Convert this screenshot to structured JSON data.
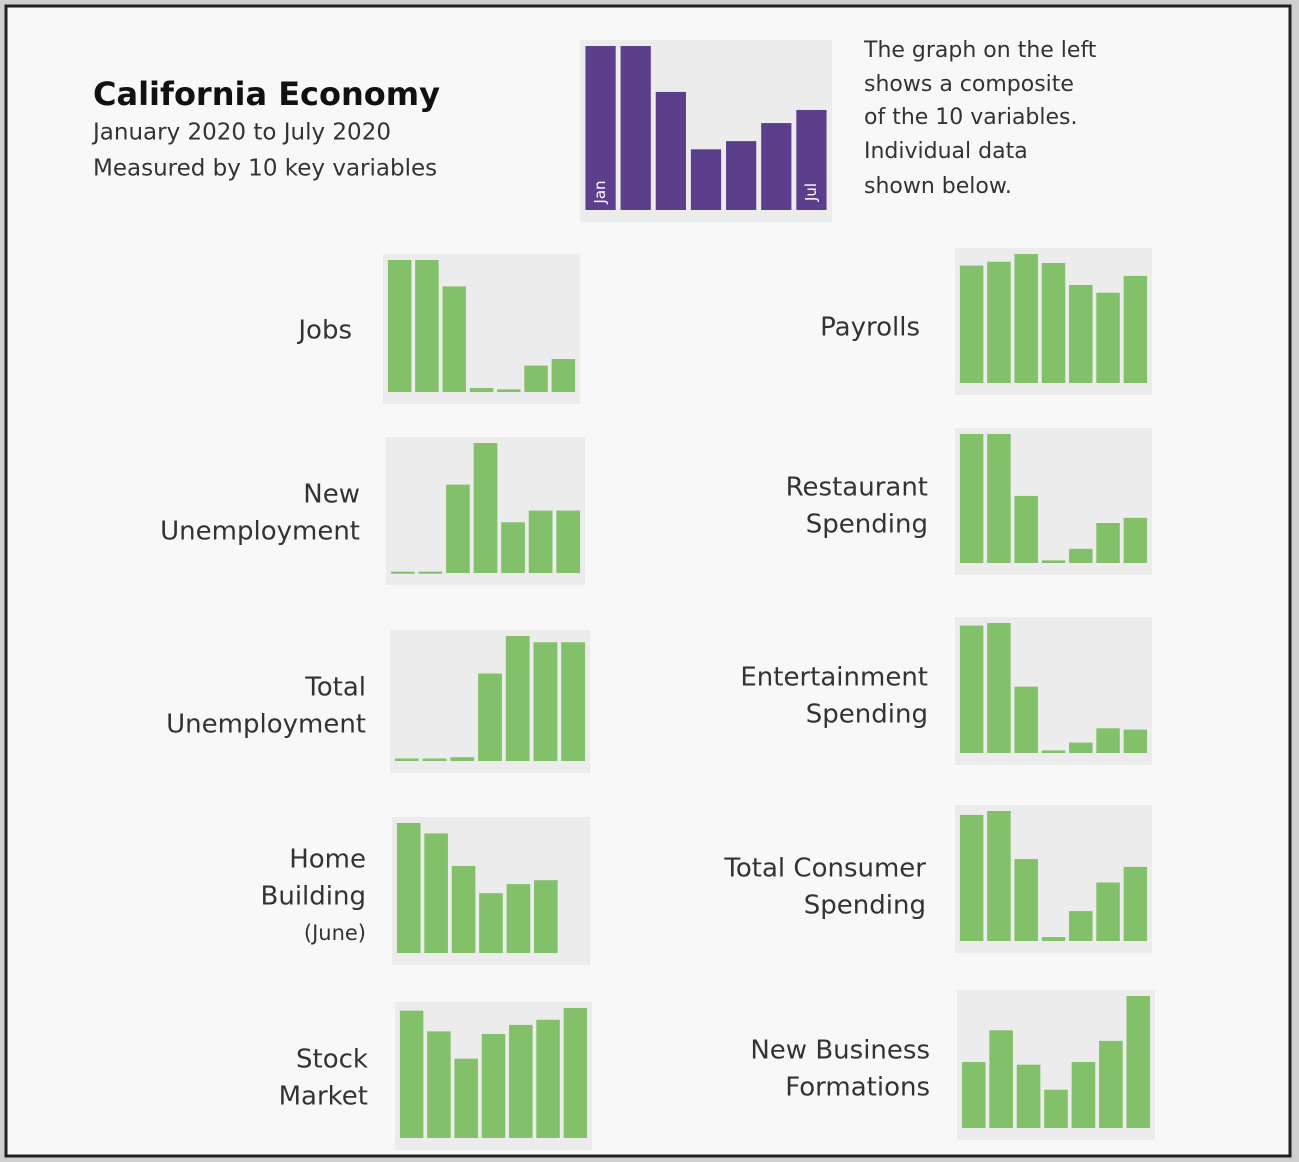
{
  "title": "California Economy",
  "subtitle": [
    "January 2020 to July 2020",
    "Measured by 10 key variables"
  ],
  "note": [
    "The graph on the left",
    "shows a composite",
    "of the 10 variables.",
    "Individual data",
    "shown below."
  ],
  "chart_data": [
    {
      "type": "bar",
      "categories": [
        "Jan",
        null,
        null,
        null,
        null,
        null,
        "Jul"
      ],
      "values": [
        100,
        100,
        72,
        37,
        42,
        53,
        61
      ],
      "color": "#5b3f8c",
      "ylim": [
        0,
        100
      ]
    },
    {
      "type": "bar",
      "title": [
        "Jobs"
      ],
      "values": [
        100,
        100,
        80,
        3,
        2,
        20,
        25
      ],
      "color": "#82c06a",
      "ylim": [
        0,
        100
      ]
    },
    {
      "type": "bar",
      "title": [
        "New",
        "Unemployment"
      ],
      "values": [
        1,
        1,
        68,
        100,
        39,
        48,
        48
      ],
      "color": "#82c06a",
      "ylim": [
        0,
        100
      ]
    },
    {
      "type": "bar",
      "title": [
        "Total",
        "Unemployment"
      ],
      "values": [
        2,
        2,
        3,
        70,
        100,
        95,
        95
      ],
      "color": "#82c06a",
      "ylim": [
        0,
        100
      ]
    },
    {
      "type": "bar",
      "title": [
        "Home",
        "Building",
        "(June)"
      ],
      "values": [
        100,
        92,
        67,
        46,
        53,
        56
      ],
      "color": "#82c06a",
      "ylim": [
        0,
        100
      ]
    },
    {
      "type": "bar",
      "title": [
        "Stock",
        "Market"
      ],
      "values": [
        98,
        82,
        61,
        80,
        87,
        91,
        100
      ],
      "color": "#82c06a",
      "ylim": [
        0,
        100
      ]
    },
    {
      "type": "bar",
      "title": [
        "Payrolls"
      ],
      "values": [
        91,
        94,
        100,
        93,
        76,
        70,
        83
      ],
      "color": "#82c06a",
      "ylim": [
        0,
        100
      ]
    },
    {
      "type": "bar",
      "title": [
        "Restaurant",
        "Spending"
      ],
      "values": [
        100,
        100,
        52,
        2,
        11,
        31,
        35
      ],
      "color": "#82c06a",
      "ylim": [
        0,
        100
      ]
    },
    {
      "type": "bar",
      "title": [
        "Entertainment",
        "Spending"
      ],
      "values": [
        98,
        100,
        51,
        2,
        8,
        19,
        18
      ],
      "color": "#82c06a",
      "ylim": [
        0,
        100
      ]
    },
    {
      "type": "bar",
      "title": [
        "Total Consumer",
        "Spending"
      ],
      "values": [
        97,
        100,
        63,
        3,
        23,
        45,
        57
      ],
      "color": "#82c06a",
      "ylim": [
        0,
        100
      ]
    },
    {
      "type": "bar",
      "title": [
        "New Business",
        "Formations"
      ],
      "values": [
        50,
        74,
        48,
        29,
        50,
        66,
        100
      ],
      "color": "#82c06a",
      "ylim": [
        0,
        100
      ]
    }
  ]
}
